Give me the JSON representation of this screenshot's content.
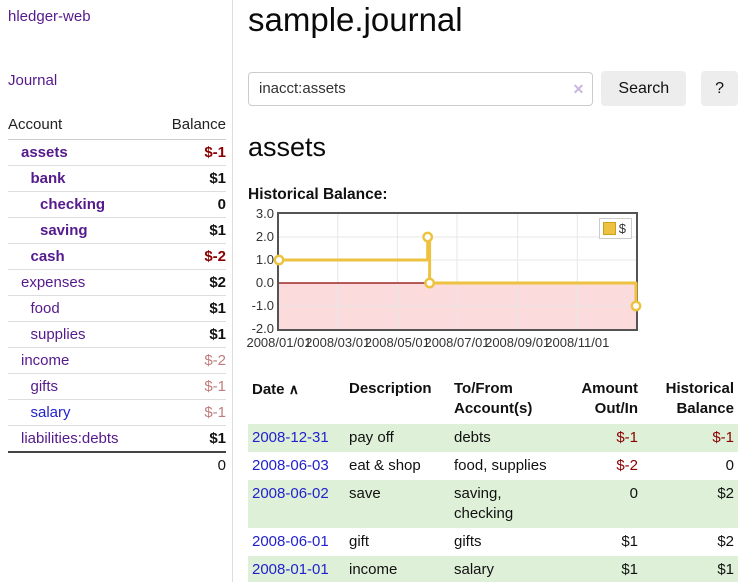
{
  "app": {
    "title": "hledger-web"
  },
  "sidebar": {
    "journal_link": "Journal",
    "headers": {
      "account": "Account",
      "balance": "Balance"
    },
    "accounts": [
      {
        "name": "assets",
        "level": 1,
        "bold": true,
        "balance": "$-1",
        "balance_class": "neg-strong"
      },
      {
        "name": "bank",
        "level": 2,
        "bold": true,
        "balance": "$1",
        "balance_class": ""
      },
      {
        "name": "checking",
        "level": 3,
        "bold": true,
        "balance": "0",
        "balance_class": ""
      },
      {
        "name": "saving",
        "level": 3,
        "bold": true,
        "balance": "$1",
        "balance_class": ""
      },
      {
        "name": "cash",
        "level": 2,
        "bold": true,
        "balance": "$-2",
        "balance_class": "neg-strong"
      },
      {
        "name": "expenses",
        "level": 1,
        "bold": false,
        "balance": "$2",
        "balance_class": ""
      },
      {
        "name": "food",
        "level": 2,
        "bold": false,
        "balance": "$1",
        "balance_class": ""
      },
      {
        "name": "supplies",
        "level": 2,
        "bold": false,
        "balance": "$1",
        "balance_class": ""
      },
      {
        "name": "income",
        "level": 1,
        "bold": false,
        "balance": "$-2",
        "balance_class": "neg-soft"
      },
      {
        "name": "gifts",
        "level": 2,
        "bold": false,
        "balance": "$-1",
        "balance_class": "neg-soft"
      },
      {
        "name": "salary",
        "level": 2,
        "bold": false,
        "balance": "$-1",
        "balance_class": "neg-soft",
        "link_blue": true
      },
      {
        "name": "liabilities:debts",
        "level": 1,
        "bold": false,
        "balance": "$1",
        "balance_class": ""
      }
    ],
    "total": "0"
  },
  "main": {
    "title": "sample.journal",
    "search": {
      "value": "inacct:assets",
      "clear_icon": "✕",
      "search_button": "Search",
      "help_button": "?"
    },
    "account_heading": "assets",
    "chart_label": "Historical Balance:"
  },
  "register": {
    "headers": {
      "date": "Date",
      "description": "Description",
      "account": "To/From\nAccount(s)",
      "amount": "Amount\nOut/In",
      "balance": "Historical\nBalance"
    },
    "sort_icon": "∧",
    "rows": [
      {
        "date": "2008-12-31",
        "description": "pay off",
        "account": "debts",
        "amount": "$-1",
        "amount_neg": true,
        "balance": "$-1",
        "balance_neg": true
      },
      {
        "date": "2008-06-03",
        "description": "eat & shop",
        "account": "food, supplies",
        "amount": "$-2",
        "amount_neg": true,
        "balance": "0",
        "balance_neg": false
      },
      {
        "date": "2008-06-02",
        "description": "save",
        "account": "saving,\nchecking",
        "amount": "0",
        "amount_neg": false,
        "balance": "$2",
        "balance_neg": false
      },
      {
        "date": "2008-06-01",
        "description": "gift",
        "account": "gifts",
        "amount": "$1",
        "amount_neg": false,
        "balance": "$2",
        "balance_neg": false
      },
      {
        "date": "2008-01-01",
        "description": "income",
        "account": "salary",
        "amount": "$1",
        "amount_neg": false,
        "balance": "$1",
        "balance_neg": false
      }
    ]
  },
  "chart_data": {
    "type": "line",
    "title": "Historical Balance",
    "step": true,
    "series": [
      {
        "name": "$",
        "points": [
          [
            "2008-01-01",
            1
          ],
          [
            "2008-06-01",
            2
          ],
          [
            "2008-06-03",
            0
          ],
          [
            "2008-12-31",
            -1
          ]
        ]
      }
    ],
    "xlim": [
      "2008-01-01",
      "2008-12-31"
    ],
    "ylim": [
      -2,
      3
    ],
    "y_ticks": [
      "3.0",
      "2.0",
      "1.0",
      "0.0",
      "-1.0",
      "-2.0"
    ],
    "x_ticks": [
      {
        "label": "2008/01/01",
        "date": "2008-01-01"
      },
      {
        "label": "2008/03/01",
        "date": "2008-03-01"
      },
      {
        "label": "2008/05/01",
        "date": "2008-05-01"
      },
      {
        "label": "2008/07/01",
        "date": "2008-07-01"
      },
      {
        "label": "2008/09/01",
        "date": "2008-09-01"
      },
      {
        "label": "2008/11/01",
        "date": "2008-11-01"
      }
    ],
    "legend": [
      {
        "label": "$",
        "color": "#edc240"
      }
    ],
    "legend_position": "top-right",
    "grid": true,
    "negative_region": true
  },
  "colors": {
    "link_purple": "#551a8b",
    "link_blue": "#2222cc",
    "negative_strong": "#8b0000",
    "negative_soft": "#c17d7d",
    "row_green": "#dff0d8",
    "line_gold": "#edc240",
    "negative_fill": "#fbdbdb",
    "zero_line": "#8b0000",
    "grid_line": "#e7e7e7"
  }
}
